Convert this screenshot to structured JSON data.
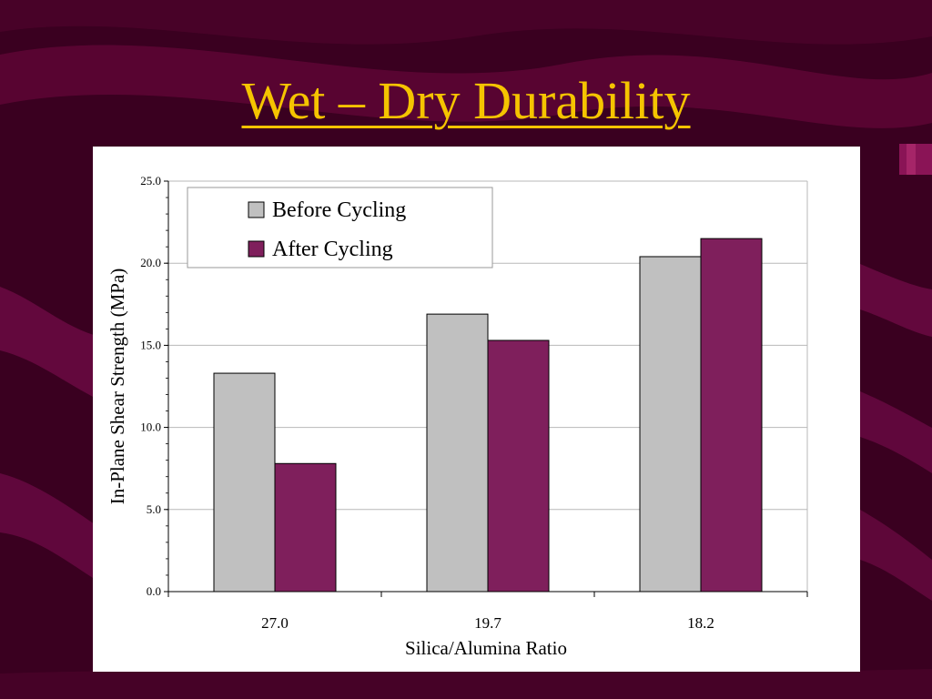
{
  "slide": {
    "title": "Wet – Dry Durability",
    "title_color": "#f5c400",
    "background_color": "#3a0020",
    "accent_color": "#7a0040"
  },
  "chart_data": {
    "type": "bar",
    "title": "",
    "xlabel": "Silica/Alumina Ratio",
    "ylabel": "In-Plane Shear Strength (MPa)",
    "categories": [
      "27.0",
      "19.7",
      "18.2"
    ],
    "series": [
      {
        "name": "Before Cycling",
        "values": [
          13.3,
          16.9,
          20.4
        ],
        "color": "#c0c0c0"
      },
      {
        "name": "After Cycling",
        "values": [
          7.8,
          15.3,
          21.5
        ],
        "color": "#7f1f5c"
      }
    ],
    "ylim": [
      0,
      25
    ],
    "yticks": [
      "0.0",
      "5.0",
      "10.0",
      "15.0",
      "20.0",
      "25.0"
    ],
    "grid": true,
    "legend_position": "top-left"
  }
}
